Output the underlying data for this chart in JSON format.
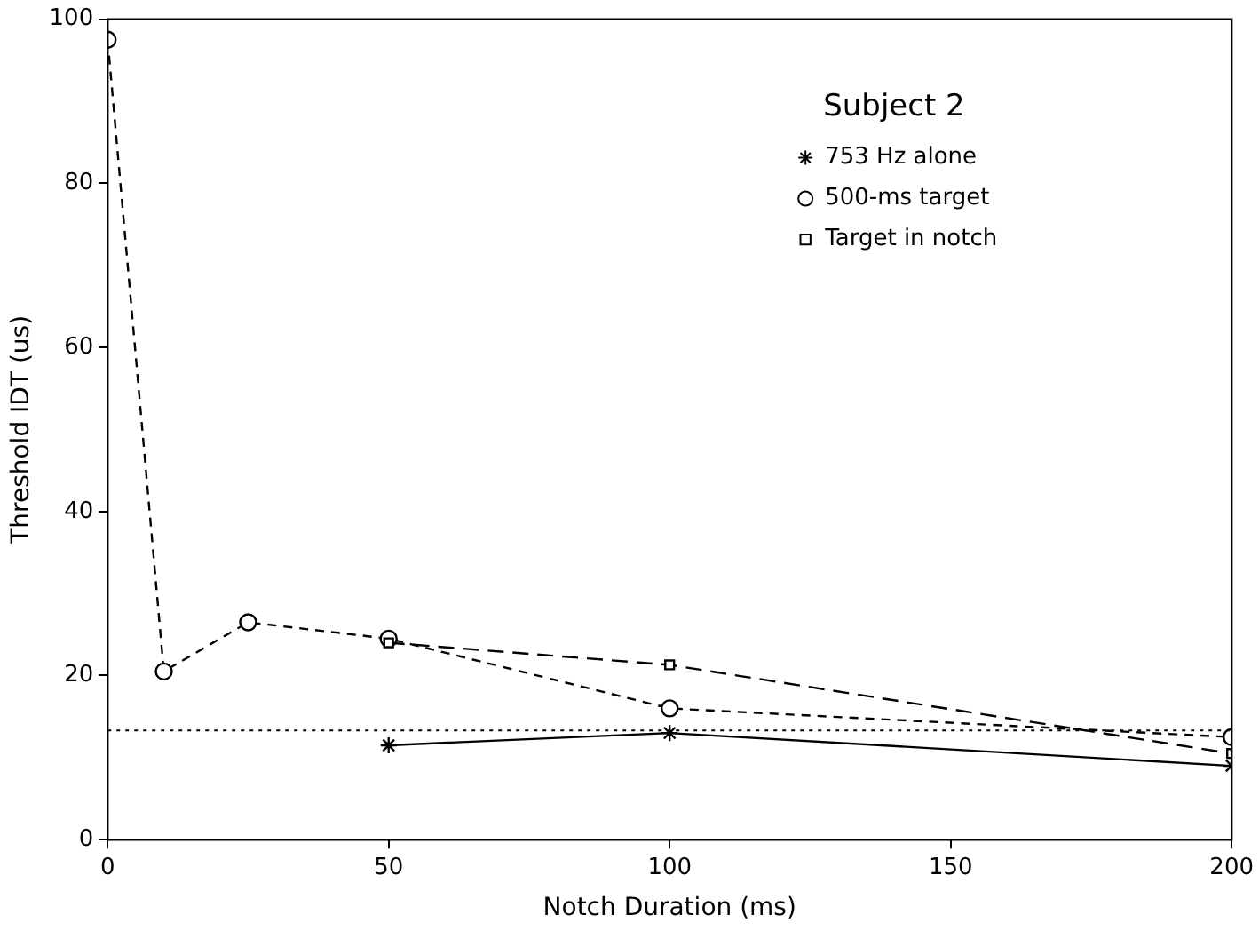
{
  "chart_data": {
    "type": "line",
    "xlabel": "Notch Duration (ms)",
    "ylabel": "Threshold IDT (us)",
    "legend_title": "Subject 2",
    "legend": "top right",
    "grid": false,
    "xlim": [
      0,
      200
    ],
    "xticks": [
      0,
      50,
      100,
      150,
      200
    ],
    "ylim": [
      0,
      100
    ],
    "yticks": [
      0,
      20,
      40,
      60,
      80,
      100
    ],
    "series": [
      {
        "name": "753 Hz alone",
        "color": "#000000",
        "marker": "cross",
        "line_style": "solid",
        "x": [
          50,
          100,
          200
        ],
        "values": [
          11.5,
          13,
          9
        ]
      },
      {
        "name": "500-ms target",
        "color": "#000000",
        "marker": "circle",
        "line_style": "dashed",
        "x": [
          0,
          10,
          25,
          50,
          100,
          200
        ],
        "values": [
          97.5,
          20.5,
          26.5,
          24.5,
          16,
          12.5
        ]
      },
      {
        "name": "Target in notch",
        "color": "#000000",
        "marker": "square",
        "line_style": "dashed",
        "x": [
          50,
          100,
          200
        ],
        "values": [
          24,
          21.3,
          10.5
        ]
      }
    ],
    "ref_lines": [
      {
        "axis": "y",
        "value": 13.3,
        "line_style": "dotted",
        "color": "#000000"
      }
    ]
  }
}
